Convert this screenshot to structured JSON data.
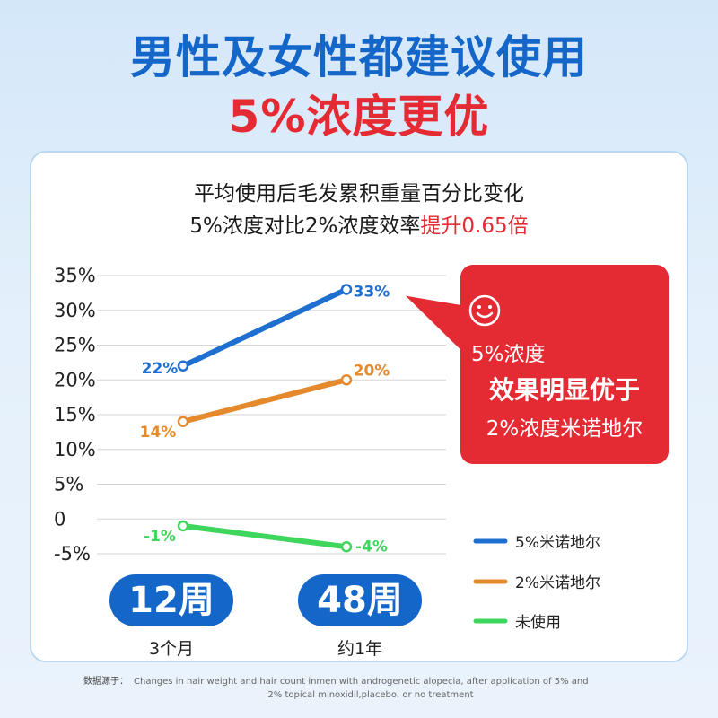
{
  "headline": {
    "line1": "男性及女性都建议使用",
    "line2": "5%浓度更优"
  },
  "subtitle": {
    "line1": "平均使用后毛发累积重量百分比变化",
    "line2_prefix": "5%浓度对比2%浓度效率",
    "line2_highlight": "提升0.65倍"
  },
  "callout": {
    "icon": "smiley-icon",
    "line1": "5%浓度",
    "line2": "效果明显优于",
    "line3": "2%浓度米诺地尔"
  },
  "time_axis": [
    {
      "pill": "12周",
      "sub": "3个月"
    },
    {
      "pill": "48周",
      "sub": "约1年"
    }
  ],
  "source": {
    "label": "数据源于：",
    "line1": "Changes in hair weight and hair count inmen with androgenetic alopecia, after application of 5% and",
    "line2": "2% topical minoxidil,placebo, or no treatment"
  },
  "colors": {
    "brand_blue": "#1466c8",
    "accent_red": "#e42b33",
    "series_5pct": "#1f6fd1",
    "series_2pct": "#e48a2c",
    "series_none": "#3ed65c"
  },
  "chart_data": {
    "type": "line",
    "x": [
      "12周",
      "48周"
    ],
    "ylim": [
      -5,
      35
    ],
    "yticks": [
      "35%",
      "30%",
      "25%",
      "20%",
      "15%",
      "10%",
      "5%",
      "0",
      "-5%"
    ],
    "ytick_values": [
      35,
      30,
      25,
      20,
      15,
      10,
      5,
      0,
      -5
    ],
    "grid": true,
    "legend_position": "bottom-right",
    "series": [
      {
        "name": "5%米诺地尔",
        "values": [
          22,
          33
        ],
        "labels": [
          "22%",
          "33%"
        ],
        "color": "#1f6fd1"
      },
      {
        "name": "2%米诺地尔",
        "values": [
          14,
          20
        ],
        "labels": [
          "14%",
          "20%"
        ],
        "color": "#e48a2c"
      },
      {
        "name": "未使用",
        "values": [
          -1,
          -4
        ],
        "labels": [
          "-1%",
          "-4%"
        ],
        "color": "#3ed65c"
      }
    ]
  }
}
